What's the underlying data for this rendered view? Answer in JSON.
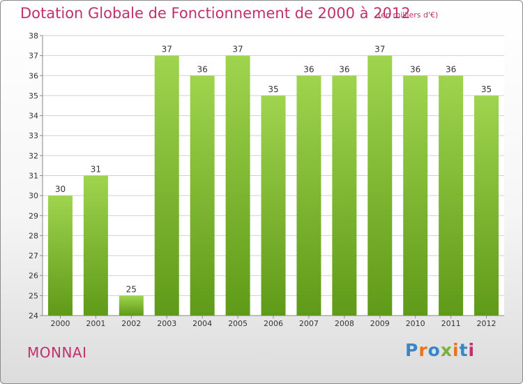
{
  "header": {
    "title": "Dotation Globale de Fonctionnement de 2000 à 2012",
    "unit": "(en milliers d'€)"
  },
  "footer": {
    "commune": "MONNAI",
    "logo": "Proxiti"
  },
  "colors": {
    "title": "#c0306a",
    "bar_top": "#9fd44e",
    "bar_bottom": "#5f9a18",
    "grid": "#d0d0d0",
    "logo": [
      "#3a86c8",
      "#e8741e",
      "#3a86c8",
      "#7ab03a",
      "#e8741e",
      "#3a86c8",
      "#c0306a"
    ]
  },
  "chart_data": {
    "type": "bar",
    "title": "Dotation Globale de Fonctionnement de 2000 à 2012",
    "subtitle": "(en milliers d'€)",
    "xlabel": "",
    "ylabel": "",
    "categories": [
      "2000",
      "2001",
      "2002",
      "2003",
      "2004",
      "2005",
      "2006",
      "2007",
      "2008",
      "2009",
      "2010",
      "2011",
      "2012"
    ],
    "values": [
      30,
      31,
      25,
      37,
      36,
      37,
      35,
      36,
      36,
      37,
      36,
      36,
      35
    ],
    "ylim": [
      24,
      38
    ],
    "yticks": [
      24,
      25,
      26,
      27,
      28,
      29,
      30,
      31,
      32,
      33,
      34,
      35,
      36,
      37,
      38
    ],
    "grid": true,
    "data_labels": true
  }
}
